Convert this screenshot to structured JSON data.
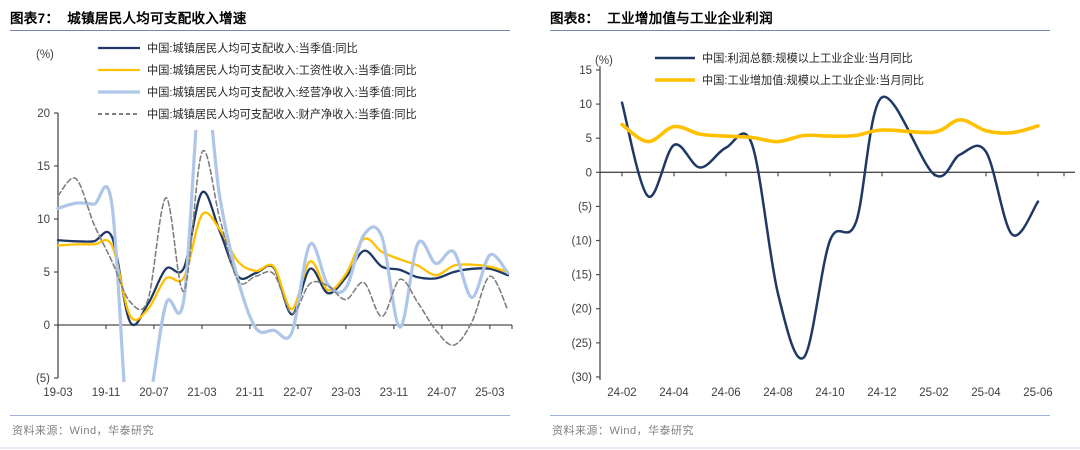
{
  "page": {
    "background": "#ffffff"
  },
  "chart_data": [
    {
      "fig_id": "图表7",
      "title": "图表7：  城镇居民人均可支配收入增速",
      "source": "资料来源：Wind，华泰研究",
      "type": "line",
      "unit_label": "(%)",
      "legend_position": "top-left",
      "grid": false,
      "x_note": "months since 2019-03, quarterly observations",
      "xlim": [
        0,
        75.7
      ],
      "ylim": [
        -5,
        20
      ],
      "x": [
        0,
        3,
        6,
        9,
        12,
        15,
        18,
        21,
        24,
        27,
        30,
        33,
        36,
        39,
        42,
        45,
        48,
        51,
        54,
        57,
        60,
        63,
        66,
        69,
        72,
        75
      ],
      "x_ticks": [
        {
          "x": 0,
          "label": "19-03"
        },
        {
          "x": 8,
          "label": "19-11"
        },
        {
          "x": 16,
          "label": "20-07"
        },
        {
          "x": 24,
          "label": "21-03"
        },
        {
          "x": 32,
          "label": "21-11"
        },
        {
          "x": 40,
          "label": "22-07"
        },
        {
          "x": 48,
          "label": "23-03"
        },
        {
          "x": 56,
          "label": "23-11"
        },
        {
          "x": 64,
          "label": "24-07"
        },
        {
          "x": 72,
          "label": "25-03"
        }
      ],
      "y_ticks": [
        {
          "v": 20,
          "label": "20"
        },
        {
          "v": 15,
          "label": "15"
        },
        {
          "v": 10,
          "label": "10"
        },
        {
          "v": 5,
          "label": "5"
        },
        {
          "v": 0,
          "label": "0"
        },
        {
          "v": -5,
          "label": "(5)"
        }
      ],
      "series": [
        {
          "name": "中国:城镇居民人均可支配收入:当季值:同比",
          "color": "#1f3864",
          "width": 2.3,
          "dash": "",
          "values": [
            8.0,
            7.9,
            7.9,
            8.3,
            0.3,
            2.0,
            5.3,
            5.4,
            12.5,
            8.8,
            4.6,
            4.9,
            5.4,
            1.0,
            5.3,
            3.0,
            4.5,
            7.0,
            5.5,
            5.2,
            4.5,
            4.4,
            5.0,
            5.3,
            5.3,
            4.7
          ]
        },
        {
          "name": "中国:城镇居民人均可支配收入:工资性收入:当季值:同比",
          "color": "#ffc000",
          "width": 2.3,
          "dash": "",
          "values": [
            7.5,
            7.6,
            7.6,
            7.5,
            0.9,
            1.5,
            4.4,
            4.5,
            10.4,
            9.0,
            6.0,
            5.1,
            5.5,
            1.5,
            6.0,
            3.3,
            4.8,
            8.1,
            6.9,
            6.2,
            5.6,
            4.7,
            5.6,
            5.7,
            5.5,
            5.0
          ]
        },
        {
          "name": "中国:城镇居民人均可支配收入:经营净收入:当季值:同比",
          "color": "#aec6e8",
          "width": 3.2,
          "dash": "",
          "values": [
            11.0,
            11.5,
            11.4,
            11.3,
            -12.0,
            -8.0,
            2.0,
            2.5,
            24.0,
            12.0,
            4.3,
            -0.3,
            -0.5,
            -0.7,
            7.6,
            3.8,
            3.5,
            8.5,
            8.3,
            -0.2,
            7.7,
            5.8,
            6.9,
            2.6,
            6.6,
            4.9
          ]
        },
        {
          "name": "中国:城镇居民人均可支配收入:财产净收入:当季值:同比",
          "color": "#7f7f7f",
          "width": 1.6,
          "dash": "5 3",
          "values": [
            12.2,
            13.8,
            9.5,
            6.0,
            2.2,
            2.4,
            12.0,
            3.2,
            16.3,
            10.0,
            4.2,
            4.6,
            4.8,
            1.1,
            3.9,
            3.7,
            2.4,
            4.0,
            0.8,
            4.3,
            2.1,
            -0.5,
            -1.9,
            0.3,
            4.6,
            1.4
          ]
        }
      ]
    },
    {
      "fig_id": "图表8",
      "title": "图表8：  工业增加值与工业企业利润",
      "source": "资料来源：Wind，华泰研究",
      "type": "line",
      "unit_label": "(%)",
      "legend_position": "top-center",
      "grid": false,
      "x_note": "month index from 2024-02 (no 25-01 observation)",
      "xlim": [
        0,
        16
      ],
      "ylim": [
        -30,
        15
      ],
      "x": [
        0,
        1,
        2,
        3,
        4,
        5,
        6,
        7,
        8,
        9,
        10,
        12,
        13,
        14,
        15,
        16
      ],
      "x_ticks": [
        {
          "x": 0,
          "label": "24-02"
        },
        {
          "x": 2,
          "label": "24-04"
        },
        {
          "x": 4,
          "label": "24-06"
        },
        {
          "x": 6,
          "label": "24-08"
        },
        {
          "x": 8,
          "label": "24-10"
        },
        {
          "x": 10,
          "label": "24-12"
        },
        {
          "x": 12,
          "label": "25-02"
        },
        {
          "x": 14,
          "label": "25-04"
        },
        {
          "x": 16,
          "label": "25-06"
        }
      ],
      "y_ticks": [
        {
          "v": 15,
          "label": "15"
        },
        {
          "v": 10,
          "label": "10"
        },
        {
          "v": 5,
          "label": "5"
        },
        {
          "v": 0,
          "label": "0"
        },
        {
          "v": -5,
          "label": "(5)"
        },
        {
          "v": -10,
          "label": "(10)"
        },
        {
          "v": -15,
          "label": "(15)"
        },
        {
          "v": -20,
          "label": "(20)"
        },
        {
          "v": -25,
          "label": "(25)"
        },
        {
          "v": -30,
          "label": "(30)"
        }
      ],
      "series": [
        {
          "name": "中国:利润总额:规模以上工业企业:当月同比",
          "color": "#1f3864",
          "width": 2.5,
          "dash": "",
          "values": [
            10.2,
            -3.5,
            4.0,
            0.7,
            3.6,
            4.1,
            -17.8,
            -27.1,
            -10.0,
            -7.3,
            11.0,
            -0.3,
            2.6,
            3.0,
            -9.1,
            -4.3
          ]
        },
        {
          "name": "中国:工业增加值:规模以上工业企业:当月同比",
          "color": "#ffc000",
          "width": 3.6,
          "dash": "",
          "values": [
            7.0,
            4.5,
            6.7,
            5.6,
            5.3,
            5.1,
            4.5,
            5.4,
            5.3,
            5.4,
            6.2,
            5.9,
            7.7,
            6.1,
            5.8,
            6.8
          ]
        }
      ]
    }
  ]
}
